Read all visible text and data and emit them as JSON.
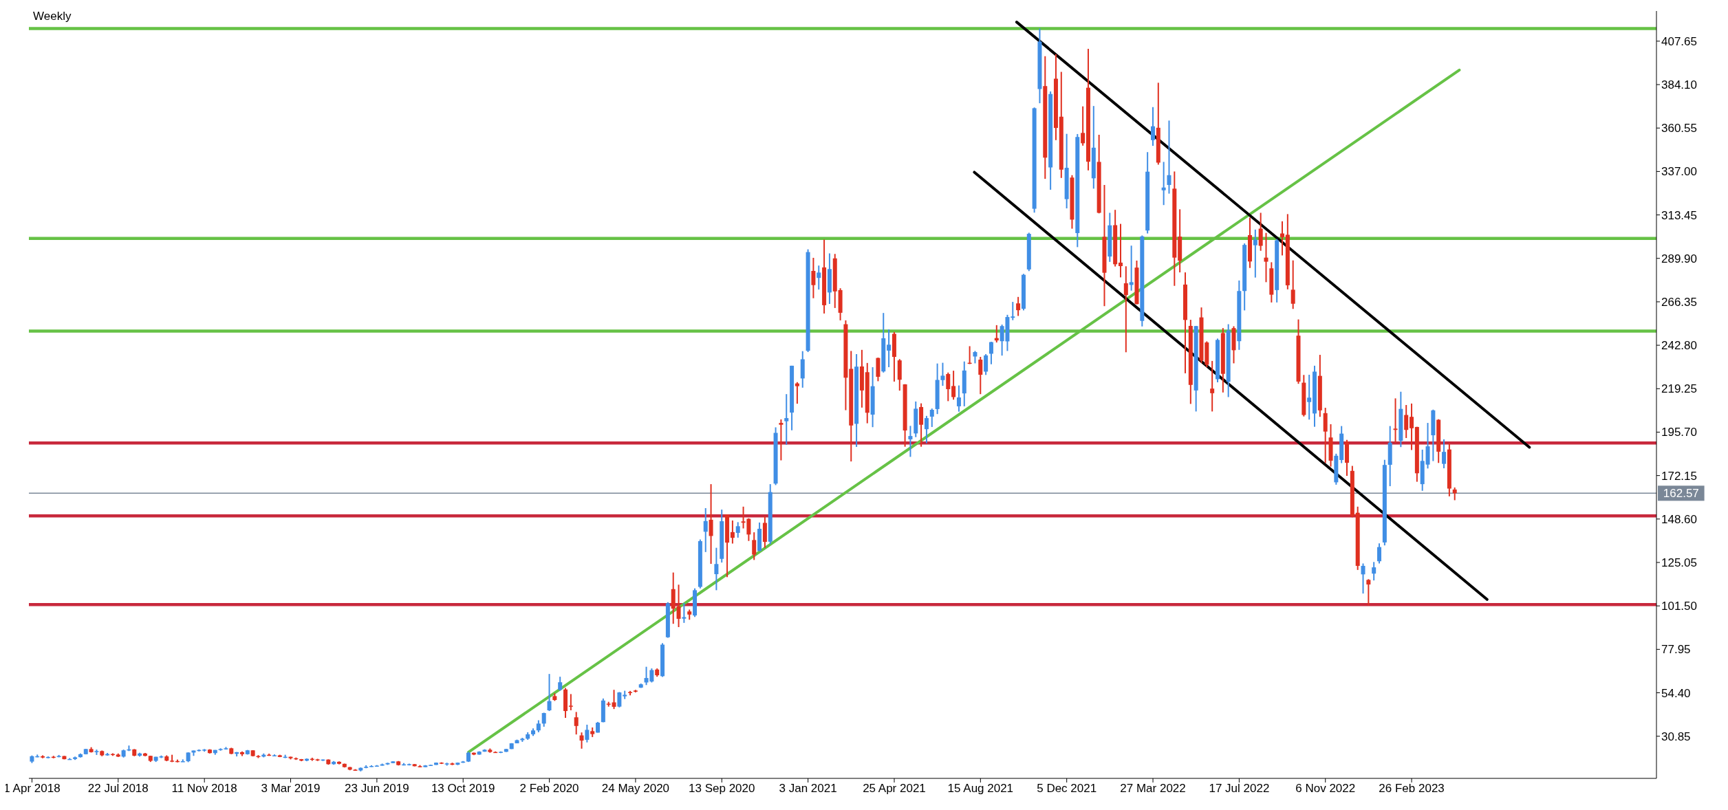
{
  "chart_data": {
    "type": "candlestick",
    "title": "Weekly",
    "x": [
      "2018-04-01",
      "2018-04-08",
      "2018-04-15",
      "2018-04-22",
      "2018-04-29",
      "2018-05-06",
      "2018-05-13",
      "2018-05-20",
      "2018-05-27",
      "2018-06-03",
      "2018-06-10",
      "2018-06-17",
      "2018-06-24",
      "2018-07-01",
      "2018-07-08",
      "2018-07-15",
      "2018-07-22",
      "2018-07-29",
      "2018-08-05",
      "2018-08-12",
      "2018-08-19",
      "2018-08-26",
      "2018-09-02",
      "2018-09-09",
      "2018-09-16",
      "2018-09-23",
      "2018-09-30",
      "2018-10-07",
      "2018-10-14",
      "2018-10-21",
      "2018-10-28",
      "2018-11-04",
      "2018-11-11",
      "2018-11-18",
      "2018-11-25",
      "2018-12-02",
      "2018-12-09",
      "2018-12-16",
      "2018-12-23",
      "2018-12-30",
      "2019-01-06",
      "2019-01-13",
      "2019-01-20",
      "2019-01-27",
      "2019-02-03",
      "2019-02-10",
      "2019-02-17",
      "2019-02-24",
      "2019-03-03",
      "2019-03-10",
      "2019-03-17",
      "2019-03-24",
      "2019-03-31",
      "2019-04-07",
      "2019-04-14",
      "2019-04-21",
      "2019-04-28",
      "2019-05-05",
      "2019-05-12",
      "2019-05-19",
      "2019-05-26",
      "2019-06-02",
      "2019-06-09",
      "2019-06-16",
      "2019-06-23",
      "2019-06-30",
      "2019-07-07",
      "2019-07-14",
      "2019-07-21",
      "2019-07-28",
      "2019-08-04",
      "2019-08-11",
      "2019-08-18",
      "2019-08-25",
      "2019-09-01",
      "2019-09-08",
      "2019-09-15",
      "2019-09-22",
      "2019-09-29",
      "2019-10-06",
      "2019-10-13",
      "2019-10-20",
      "2019-10-27",
      "2019-11-03",
      "2019-11-10",
      "2019-11-17",
      "2019-11-24",
      "2019-12-01",
      "2019-12-08",
      "2019-12-15",
      "2019-12-22",
      "2019-12-29",
      "2020-01-05",
      "2020-01-12",
      "2020-01-19",
      "2020-01-26",
      "2020-02-02",
      "2020-02-09",
      "2020-02-16",
      "2020-02-23",
      "2020-03-01",
      "2020-03-08",
      "2020-03-15",
      "2020-03-22",
      "2020-03-29",
      "2020-04-05",
      "2020-04-12",
      "2020-04-19",
      "2020-04-26",
      "2020-05-03",
      "2020-05-10",
      "2020-05-17",
      "2020-05-24",
      "2020-05-31",
      "2020-06-07",
      "2020-06-14",
      "2020-06-21",
      "2020-06-28",
      "2020-07-05",
      "2020-07-12",
      "2020-07-19",
      "2020-07-26",
      "2020-08-02",
      "2020-08-09",
      "2020-08-16",
      "2020-08-23",
      "2020-08-30",
      "2020-09-06",
      "2020-09-13",
      "2020-09-20",
      "2020-09-27",
      "2020-10-04",
      "2020-10-11",
      "2020-10-18",
      "2020-10-25",
      "2020-11-01",
      "2020-11-08",
      "2020-11-15",
      "2020-11-22",
      "2020-11-29",
      "2020-12-06",
      "2020-12-13",
      "2020-12-20",
      "2020-12-27",
      "2021-01-03",
      "2021-01-10",
      "2021-01-17",
      "2021-01-24",
      "2021-01-31",
      "2021-02-07",
      "2021-02-14",
      "2021-02-21",
      "2021-02-28",
      "2021-03-07",
      "2021-03-14",
      "2021-03-21",
      "2021-03-28",
      "2021-04-04",
      "2021-04-11",
      "2021-04-18",
      "2021-04-25",
      "2021-05-02",
      "2021-05-09",
      "2021-05-16",
      "2021-05-23",
      "2021-05-30",
      "2021-06-06",
      "2021-06-13",
      "2021-06-20",
      "2021-06-27",
      "2021-07-04",
      "2021-07-11",
      "2021-07-18",
      "2021-07-25",
      "2021-08-01",
      "2021-08-08",
      "2021-08-15",
      "2021-08-22",
      "2021-08-29",
      "2021-09-05",
      "2021-09-12",
      "2021-09-19",
      "2021-09-26",
      "2021-10-03",
      "2021-10-10",
      "2021-10-17",
      "2021-10-24",
      "2021-10-31",
      "2021-11-07",
      "2021-11-14",
      "2021-11-21",
      "2021-11-28",
      "2021-12-05",
      "2021-12-12",
      "2021-12-19",
      "2021-12-26",
      "2022-01-02",
      "2022-01-09",
      "2022-01-16",
      "2022-01-23",
      "2022-01-30",
      "2022-02-06",
      "2022-02-13",
      "2022-02-20",
      "2022-02-27",
      "2022-03-06",
      "2022-03-13",
      "2022-03-20",
      "2022-03-27",
      "2022-04-03",
      "2022-04-10",
      "2022-04-17",
      "2022-04-24",
      "2022-05-01",
      "2022-05-08",
      "2022-05-15",
      "2022-05-22",
      "2022-05-29",
      "2022-06-05",
      "2022-06-12",
      "2022-06-19",
      "2022-06-26",
      "2022-07-03",
      "2022-07-10",
      "2022-07-17",
      "2022-07-24",
      "2022-07-31",
      "2022-08-07",
      "2022-08-14",
      "2022-08-21",
      "2022-08-28",
      "2022-09-04",
      "2022-09-11",
      "2022-09-18",
      "2022-09-25",
      "2022-10-02",
      "2022-10-09",
      "2022-10-16",
      "2022-10-23",
      "2022-10-30",
      "2022-11-06",
      "2022-11-13",
      "2022-11-20",
      "2022-11-27",
      "2022-12-04",
      "2022-12-11",
      "2022-12-18",
      "2022-12-25",
      "2023-01-01",
      "2023-01-08",
      "2023-01-15",
      "2023-01-22",
      "2023-01-29",
      "2023-02-05",
      "2023-02-12",
      "2023-02-19",
      "2023-02-26",
      "2023-03-05",
      "2023-03-12",
      "2023-03-19",
      "2023-03-26",
      "2023-04-02",
      "2023-04-09",
      "2023-04-16",
      "2023-04-23"
    ],
    "ohlc": [
      [
        17.1,
        20.4,
        16.3,
        20.0
      ],
      [
        19.9,
        20.9,
        19.4,
        20.0
      ],
      [
        20.0,
        20.5,
        18.9,
        19.3
      ],
      [
        19.3,
        19.9,
        18.9,
        19.6
      ],
      [
        19.7,
        20.2,
        18.9,
        19.6
      ],
      [
        19.6,
        20.7,
        19.4,
        20.1
      ],
      [
        20.1,
        20.2,
        18.3,
        18.4
      ],
      [
        18.4,
        19.0,
        18.1,
        18.5
      ],
      [
        18.5,
        19.8,
        18.0,
        19.4
      ],
      [
        19.5,
        21.5,
        19.3,
        21.1
      ],
      [
        21.1,
        24.0,
        21.0,
        23.9
      ],
      [
        23.9,
        24.9,
        22.0,
        22.2
      ],
      [
        22.2,
        23.6,
        20.7,
        22.8
      ],
      [
        22.8,
        23.1,
        20.0,
        20.5
      ],
      [
        20.5,
        21.8,
        20.3,
        21.2
      ],
      [
        21.2,
        21.6,
        20.2,
        20.9
      ],
      [
        20.9,
        21.5,
        19.6,
        19.8
      ],
      [
        19.8,
        23.6,
        19.3,
        23.2
      ],
      [
        23.2,
        25.8,
        22.8,
        23.7
      ],
      [
        23.7,
        23.9,
        20.0,
        20.3
      ],
      [
        20.3,
        21.9,
        19.8,
        21.5
      ],
      [
        21.5,
        21.8,
        20.0,
        20.2
      ],
      [
        20.2,
        20.3,
        16.9,
        17.5
      ],
      [
        17.5,
        19.7,
        16.9,
        19.7
      ],
      [
        19.7,
        20.4,
        19.0,
        19.9
      ],
      [
        19.9,
        20.5,
        17.3,
        17.6
      ],
      [
        17.6,
        20.8,
        16.8,
        17.4
      ],
      [
        17.4,
        18.2,
        16.7,
        17.2
      ],
      [
        17.2,
        18.3,
        16.9,
        17.3
      ],
      [
        17.3,
        22.1,
        16.8,
        22.0
      ],
      [
        22.0,
        23.1,
        20.2,
        23.1
      ],
      [
        23.1,
        23.7,
        22.6,
        23.4
      ],
      [
        23.4,
        23.9,
        22.5,
        23.6
      ],
      [
        23.6,
        23.8,
        21.5,
        21.7
      ],
      [
        21.7,
        23.4,
        20.8,
        23.4
      ],
      [
        23.4,
        24.3,
        23.0,
        23.9
      ],
      [
        23.9,
        25.0,
        23.6,
        24.3
      ],
      [
        24.3,
        24.6,
        21.1,
        21.3
      ],
      [
        21.3,
        22.3,
        19.9,
        22.2
      ],
      [
        22.2,
        22.6,
        20.1,
        21.1
      ],
      [
        21.1,
        23.4,
        20.9,
        23.2
      ],
      [
        23.2,
        23.3,
        19.9,
        20.1
      ],
      [
        20.1,
        20.6,
        19.0,
        19.8
      ],
      [
        19.8,
        21.5,
        19.4,
        20.8
      ],
      [
        20.8,
        21.4,
        20.2,
        20.3
      ],
      [
        20.3,
        21.0,
        20.1,
        20.5
      ],
      [
        20.5,
        20.8,
        19.5,
        19.6
      ],
      [
        19.6,
        20.8,
        19.0,
        19.7
      ],
      [
        19.7,
        19.8,
        18.3,
        18.9
      ],
      [
        18.9,
        19.3,
        18.0,
        18.4
      ],
      [
        18.4,
        18.5,
        17.3,
        17.6
      ],
      [
        17.6,
        18.8,
        17.3,
        18.6
      ],
      [
        18.6,
        19.2,
        17.5,
        18.3
      ],
      [
        18.3,
        18.6,
        17.4,
        17.8
      ],
      [
        17.8,
        18.3,
        17.4,
        18.2
      ],
      [
        18.2,
        18.3,
        15.4,
        15.7
      ],
      [
        15.7,
        17.4,
        15.4,
        17.0
      ],
      [
        17.0,
        17.2,
        15.6,
        15.9
      ],
      [
        15.9,
        16.0,
        13.9,
        14.1
      ],
      [
        14.1,
        14.2,
        12.4,
        12.7
      ],
      [
        12.7,
        13.0,
        12.1,
        12.3
      ],
      [
        12.3,
        13.9,
        11.8,
        13.7
      ],
      [
        13.7,
        15.1,
        13.5,
        14.3
      ],
      [
        14.3,
        15.1,
        14.2,
        14.7
      ],
      [
        14.7,
        15.2,
        14.3,
        14.9
      ],
      [
        14.9,
        16.0,
        14.9,
        15.6
      ],
      [
        15.6,
        16.5,
        15.3,
        16.3
      ],
      [
        16.3,
        17.3,
        16.2,
        17.2
      ],
      [
        17.2,
        17.4,
        15.0,
        15.2
      ],
      [
        15.2,
        16.3,
        15.0,
        15.6
      ],
      [
        15.6,
        16.0,
        15.0,
        15.7
      ],
      [
        15.7,
        15.8,
        14.5,
        14.6
      ],
      [
        14.6,
        15.2,
        14.0,
        14.1
      ],
      [
        14.1,
        15.2,
        14.1,
        15.0
      ],
      [
        15.0,
        15.4,
        14.8,
        15.3
      ],
      [
        15.3,
        16.6,
        15.3,
        16.5
      ],
      [
        16.5,
        16.7,
        15.8,
        16.0
      ],
      [
        16.0,
        16.5,
        14.9,
        16.1
      ],
      [
        16.1,
        16.5,
        15.2,
        15.4
      ],
      [
        15.4,
        16.6,
        15.2,
        16.5
      ],
      [
        16.5,
        17.4,
        16.4,
        17.1
      ],
      [
        17.1,
        22.4,
        16.9,
        21.9
      ],
      [
        21.9,
        22.0,
        20.6,
        20.9
      ],
      [
        20.9,
        22.7,
        20.8,
        22.5
      ],
      [
        22.5,
        23.8,
        22.4,
        23.5
      ],
      [
        23.5,
        24.2,
        21.9,
        22.3
      ],
      [
        22.3,
        22.6,
        21.8,
        21.9
      ],
      [
        21.9,
        22.6,
        21.7,
        22.4
      ],
      [
        22.4,
        24.0,
        22.3,
        23.9
      ],
      [
        23.9,
        27.1,
        23.9,
        27.0
      ],
      [
        27.0,
        29.0,
        27.0,
        28.7
      ],
      [
        28.7,
        30.0,
        27.8,
        29.5
      ],
      [
        29.5,
        33.0,
        28.9,
        31.9
      ],
      [
        31.9,
        35.1,
        31.0,
        34.0
      ],
      [
        34.0,
        39.5,
        33.0,
        37.7
      ],
      [
        37.7,
        43.6,
        36.0,
        43.4
      ],
      [
        44.9,
        64.6,
        44.5,
        49.9
      ],
      [
        52.6,
        54.1,
        50.0,
        50.5
      ],
      [
        56.0,
        63.1,
        55.5,
        60.1
      ],
      [
        56.2,
        57.0,
        40.8,
        44.5
      ],
      [
        47.4,
        53.7,
        44.9,
        46.9
      ],
      [
        41.1,
        44.0,
        31.8,
        36.4
      ],
      [
        31.3,
        32.9,
        24.1,
        28.5
      ],
      [
        28.9,
        37.1,
        27.5,
        34.3
      ],
      [
        33.6,
        35.6,
        30.4,
        32.0
      ],
      [
        32.8,
        38.6,
        32.8,
        38.2
      ],
      [
        38.5,
        51.3,
        38.4,
        50.2
      ],
      [
        48.5,
        49.5,
        46.9,
        48.3
      ],
      [
        49.2,
        56.0,
        45.6,
        46.8
      ],
      [
        46.9,
        54.8,
        46.5,
        54.6
      ],
      [
        52.5,
        55.5,
        51.0,
        53.3
      ],
      [
        54.8,
        55.4,
        53.0,
        54.4
      ],
      [
        55.6,
        56.0,
        54.6,
        55.0
      ],
      [
        57.2,
        59.4,
        57.0,
        59.0
      ],
      [
        60.0,
        68.5,
        58.6,
        62.4
      ],
      [
        60.5,
        67.6,
        60.0,
        66.7
      ],
      [
        67.0,
        67.6,
        63.1,
        63.9
      ],
      [
        63.4,
        81.3,
        63.0,
        80.5
      ],
      [
        84.5,
        103.5,
        84.2,
        102.9
      ],
      [
        110.6,
        119.6,
        91.8,
        100.0
      ],
      [
        101.3,
        113.0,
        90.0,
        94.5
      ],
      [
        94.6,
        103.1,
        92.3,
        95.4
      ],
      [
        98.5,
        99.5,
        94.0,
        96.8
      ],
      [
        96.3,
        111.0,
        95.5,
        110.0
      ],
      [
        111.8,
        137.5,
        111.0,
        136.6
      ],
      [
        141.7,
        154.5,
        130.7,
        147.5
      ],
      [
        148.2,
        167.5,
        124.3,
        139.4
      ],
      [
        118.7,
        133.0,
        110.0,
        124.2
      ],
      [
        127.0,
        153.7,
        125.0,
        147.4
      ],
      [
        151.0,
        151.1,
        117.1,
        135.8
      ],
      [
        141.5,
        147.8,
        135.3,
        138.4
      ],
      [
        141.1,
        146.9,
        138.5,
        144.7
      ],
      [
        147.3,
        155.3,
        143.5,
        146.6
      ],
      [
        148.7,
        149.0,
        136.7,
        140.2
      ],
      [
        137.2,
        141.4,
        126.4,
        129.3
      ],
      [
        131.3,
        146.7,
        131.2,
        143.3
      ],
      [
        146.5,
        150.1,
        133.0,
        136.2
      ],
      [
        136.3,
        167.5,
        135.0,
        163.2
      ],
      [
        167.8,
        198.3,
        167.0,
        195.3
      ],
      [
        200.7,
        202.6,
        180.4,
        199.7
      ],
      [
        201.6,
        216.3,
        188.8,
        203.3
      ],
      [
        206.3,
        231.7,
        196.7,
        231.7
      ],
      [
        222.1,
        222.8,
        211.1,
        220.6
      ],
      [
        224.8,
        239.6,
        219.8,
        235.2
      ],
      [
        239.8,
        294.8,
        239.1,
        293.3
      ],
      [
        283.1,
        290.2,
        268.3,
        275.4
      ],
      [
        279.3,
        286.0,
        273.0,
        282.2
      ],
      [
        285.0,
        300.1,
        260.0,
        264.5
      ],
      [
        271.4,
        292.6,
        265.2,
        284.1
      ],
      [
        289.9,
        292.3,
        263.0,
        272.0
      ],
      [
        272.7,
        273.7,
        256.3,
        260.4
      ],
      [
        254.2,
        256.3,
        207.6,
        225.2
      ],
      [
        230.0,
        239.7,
        179.8,
        199.3
      ],
      [
        200.2,
        238.0,
        187.7,
        231.2
      ],
      [
        231.3,
        240.3,
        209.0,
        218.3
      ],
      [
        228.2,
        233.2,
        200.5,
        206.2
      ],
      [
        205.2,
        230.9,
        198.4,
        220.6
      ],
      [
        235.9,
        236.1,
        223.3,
        225.7
      ],
      [
        228.6,
        260.3,
        228.0,
        246.6
      ],
      [
        239.9,
        251.4,
        230.9,
        243.1
      ],
      [
        249.0,
        250.0,
        223.1,
        236.5
      ],
      [
        234.6,
        235.3,
        218.2,
        224.1
      ],
      [
        221.6,
        221.7,
        187.8,
        196.6
      ],
      [
        191.8,
        199.1,
        182.3,
        193.6
      ],
      [
        195.0,
        212.3,
        193.0,
        208.4
      ],
      [
        209.3,
        211.3,
        187.8,
        199.7
      ],
      [
        197.3,
        204.5,
        189.7,
        203.3
      ],
      [
        204.1,
        208.5,
        198.5,
        207.8
      ],
      [
        208.2,
        232.9,
        205.5,
        224.0
      ],
      [
        223.9,
        233.3,
        220.8,
        226.3
      ],
      [
        227.2,
        228.0,
        212.5,
        219.0
      ],
      [
        220.7,
        229.0,
        213.3,
        214.7
      ],
      [
        209.7,
        221.0,
        206.8,
        214.5
      ],
      [
        216.7,
        234.0,
        209.7,
        229.1
      ],
      [
        233.3,
        242.3,
        232.6,
        233.0
      ],
      [
        236.7,
        239.7,
        233.0,
        239.1
      ],
      [
        235.0,
        236.5,
        216.3,
        226.8
      ],
      [
        228.5,
        238.0,
        226.7,
        237.3
      ],
      [
        238.2,
        244.7,
        232.5,
        244.5
      ],
      [
        246.7,
        253.7,
        244.3,
        245.4
      ],
      [
        245.0,
        254.0,
        237.2,
        253.2
      ],
      [
        244.9,
        259.3,
        239.7,
        258.1
      ],
      [
        257.7,
        266.3,
        256.4,
        258.4
      ],
      [
        265.5,
        269.0,
        258.7,
        261.8
      ],
      [
        262.6,
        281.5,
        261.7,
        281.0
      ],
      [
        283.9,
        303.8,
        283.0,
        303.2
      ],
      [
        316.8,
        371.7,
        314.7,
        371.3
      ],
      [
        381.7,
        414.5,
        374.0,
        407.4
      ],
      [
        383.3,
        399.5,
        333.0,
        344.5
      ],
      [
        339.2,
        380.4,
        327.1,
        379.0
      ],
      [
        387.3,
        400.6,
        354.0,
        360.6
      ],
      [
        366.7,
        391.0,
        333.5,
        338.0
      ],
      [
        322.0,
        357.4,
        317.0,
        339.0
      ],
      [
        333.7,
        335.0,
        306.0,
        310.9
      ],
      [
        303.6,
        357.3,
        296.0,
        355.7
      ],
      [
        357.9,
        372.3,
        351.0,
        352.3
      ],
      [
        382.4,
        403.5,
        337.6,
        342.3
      ],
      [
        333.3,
        372.5,
        327.7,
        349.9
      ],
      [
        342.2,
        356.9,
        314.3,
        314.6
      ],
      [
        301.6,
        329.7,
        264.0,
        282.1
      ],
      [
        290.9,
        314.6,
        288.0,
        307.8
      ],
      [
        307.9,
        316.2,
        285.5,
        286.7
      ],
      [
        287.6,
        308.6,
        279.6,
        285.7
      ],
      [
        276.4,
        285.6,
        239.0,
        270.0
      ],
      [
        275.5,
        296.8,
        272.4,
        277.0
      ],
      [
        284.9,
        288.7,
        265.0,
        265.1
      ],
      [
        256.0,
        302.3,
        253.0,
        301.8
      ],
      [
        305.0,
        347.5,
        303.4,
        336.9
      ],
      [
        354.0,
        371.9,
        350.9,
        361.5
      ],
      [
        360.7,
        385.1,
        340.7,
        341.8
      ],
      [
        326.8,
        342.2,
        318.8,
        328.3
      ],
      [
        329.7,
        364.6,
        325.0,
        335.0
      ],
      [
        327.7,
        337.0,
        275.0,
        290.3
      ],
      [
        301.7,
        316.5,
        282.3,
        288.6
      ],
      [
        275.7,
        282.3,
        227.6,
        256.5
      ],
      [
        253.3,
        256.6,
        211.0,
        221.3
      ],
      [
        218.3,
        253.3,
        206.9,
        253.2
      ],
      [
        257.9,
        263.3,
        233.2,
        234.5
      ],
      [
        244.3,
        244.9,
        230.9,
        232.2
      ],
      [
        219.3,
        234.3,
        206.9,
        216.8
      ],
      [
        224.4,
        246.4,
        222.7,
        245.7
      ],
      [
        249.4,
        252.1,
        217.2,
        227.3
      ],
      [
        223.0,
        254.2,
        214.7,
        250.8
      ],
      [
        252.1,
        253.1,
        233.0,
        240.1
      ],
      [
        245.0,
        277.9,
        240.3,
        272.2
      ],
      [
        272.2,
        298.0,
        261.7,
        297.2
      ],
      [
        302.5,
        312.0,
        284.7,
        288.2
      ],
      [
        297.0,
        305.5,
        279.5,
        300.0
      ],
      [
        306.0,
        314.6,
        294.0,
        296.7
      ],
      [
        290.3,
        303.7,
        277.0,
        288.1
      ],
      [
        284.5,
        287.8,
        266.0,
        270.2
      ],
      [
        272.7,
        300.4,
        266.0,
        299.7
      ],
      [
        303.4,
        310.0,
        291.5,
        301.4
      ],
      [
        302.7,
        313.9,
        273.1,
        275.3
      ],
      [
        272.9,
        288.8,
        262.5,
        265.3
      ],
      [
        248.0,
        256.8,
        221.9,
        223.1
      ],
      [
        222.5,
        226.7,
        204.2,
        205.0
      ],
      [
        212.0,
        226.8,
        202.5,
        214.4
      ],
      [
        205.8,
        231.7,
        198.6,
        228.5
      ],
      [
        226.2,
        237.6,
        204.0,
        207.5
      ],
      [
        206.0,
        208.9,
        179.0,
        196.0
      ],
      [
        192.8,
        200.0,
        177.0,
        180.2
      ],
      [
        168.5,
        184.0,
        167.2,
        182.9
      ],
      [
        180.6,
        199.0,
        178.9,
        194.9
      ],
      [
        190.6,
        191.5,
        172.0,
        179.1
      ],
      [
        174.7,
        177.4,
        149.5,
        150.2
      ],
      [
        152.0,
        155.3,
        121.0,
        123.2
      ],
      [
        118.6,
        124.5,
        108.2,
        123.2
      ],
      [
        115.6,
        116.0,
        101.8,
        113.1
      ],
      [
        119.0,
        125.3,
        115.3,
        122.4
      ],
      [
        125.7,
        135.4,
        124.5,
        133.4
      ],
      [
        135.9,
        180.7,
        134.3,
        177.9
      ],
      [
        178.0,
        199.0,
        166.4,
        190.0
      ],
      [
        197.6,
        214.0,
        190.0,
        196.9
      ],
      [
        191.0,
        217.6,
        187.6,
        208.3
      ],
      [
        205.0,
        210.4,
        192.5,
        196.9
      ],
      [
        204.0,
        211.2,
        186.0,
        197.8
      ],
      [
        198.5,
        198.6,
        168.8,
        173.4
      ],
      [
        167.5,
        186.2,
        163.9,
        180.1
      ],
      [
        178.1,
        200.7,
        176.0,
        188.0
      ],
      [
        194.0,
        207.9,
        180.0,
        207.5
      ],
      [
        202.4,
        202.7,
        179.0,
        185.1
      ],
      [
        178.5,
        191.8,
        176.1,
        185.0
      ],
      [
        186.3,
        189.7,
        160.9,
        165.1
      ],
      [
        164.6,
        165.7,
        158.8,
        162.57
      ]
    ],
    "colors": [
      "#408ee5",
      "#408ee5",
      "#e03020",
      "#408ee5",
      "#e03020",
      "#408ee5",
      "#e03020",
      "#408ee5",
      "#408ee5",
      "#408ee5",
      "#408ee5",
      "#e03020",
      "#408ee5",
      "#e03020",
      "#408ee5",
      "#e03020",
      "#e03020",
      "#408ee5",
      "#408ee5",
      "#e03020",
      "#408ee5",
      "#e03020",
      "#e03020",
      "#408ee5",
      "#408ee5",
      "#e03020",
      "#e03020",
      "#e03020",
      "#408ee5",
      "#408ee5",
      "#408ee5",
      "#408ee5",
      "#408ee5",
      "#e03020",
      "#408ee5",
      "#408ee5",
      "#408ee5",
      "#e03020",
      "#408ee5",
      "#e03020",
      "#408ee5",
      "#e03020",
      "#e03020",
      "#408ee5",
      "#e03020",
      "#408ee5",
      "#e03020",
      "#408ee5",
      "#e03020",
      "#e03020",
      "#e03020",
      "#408ee5",
      "#e03020",
      "#e03020",
      "#408ee5",
      "#e03020",
      "#408ee5",
      "#e03020",
      "#e03020",
      "#e03020",
      "#e03020",
      "#408ee5",
      "#408ee5",
      "#408ee5",
      "#408ee5",
      "#408ee5",
      "#408ee5",
      "#408ee5",
      "#e03020",
      "#408ee5",
      "#408ee5",
      "#e03020",
      "#e03020",
      "#408ee5",
      "#408ee5",
      "#408ee5",
      "#e03020",
      "#408ee5",
      "#e03020",
      "#408ee5",
      "#408ee5",
      "#408ee5",
      "#e03020",
      "#408ee5",
      "#408ee5",
      "#e03020",
      "#e03020",
      "#408ee5",
      "#408ee5",
      "#408ee5",
      "#408ee5",
      "#408ee5",
      "#408ee5",
      "#408ee5",
      "#408ee5",
      "#408ee5",
      "#408ee5",
      "#e03020",
      "#408ee5",
      "#e03020",
      "#e03020",
      "#e03020",
      "#e03020",
      "#408ee5",
      "#e03020",
      "#408ee5",
      "#408ee5",
      "#e03020",
      "#e03020",
      "#408ee5",
      "#408ee5",
      "#e03020",
      "#e03020",
      "#408ee5",
      "#408ee5",
      "#408ee5",
      "#e03020",
      "#408ee5",
      "#408ee5",
      "#e03020",
      "#e03020",
      "#408ee5",
      "#e03020",
      "#408ee5",
      "#408ee5",
      "#408ee5",
      "#e03020",
      "#408ee5",
      "#408ee5",
      "#e03020",
      "#e03020",
      "#408ee5",
      "#e03020",
      "#e03020",
      "#e03020",
      "#408ee5",
      "#e03020",
      "#408ee5",
      "#408ee5",
      "#e03020",
      "#408ee5",
      "#408ee5",
      "#e03020",
      "#408ee5",
      "#408ee5",
      "#e03020",
      "#408ee5",
      "#e03020",
      "#408ee5",
      "#e03020",
      "#e03020",
      "#e03020",
      "#e03020",
      "#408ee5",
      "#e03020",
      "#e03020",
      "#408ee5",
      "#e03020",
      "#408ee5",
      "#408ee5",
      "#e03020",
      "#e03020",
      "#e03020",
      "#408ee5",
      "#408ee5",
      "#e03020",
      "#408ee5",
      "#408ee5",
      "#408ee5",
      "#408ee5",
      "#e03020",
      "#e03020",
      "#408ee5",
      "#408ee5",
      "#e03020",
      "#408ee5",
      "#e03020",
      "#408ee5",
      "#408ee5",
      "#e03020",
      "#408ee5",
      "#408ee5",
      "#408ee5",
      "#e03020",
      "#408ee5",
      "#408ee5",
      "#408ee5",
      "#408ee5",
      "#e03020",
      "#408ee5",
      "#e03020",
      "#e03020",
      "#408ee5",
      "#e03020",
      "#408ee5",
      "#e03020",
      "#e03020",
      "#408ee5",
      "#e03020",
      "#e03020",
      "#408ee5",
      "#e03020",
      "#e03020",
      "#e03020",
      "#408ee5",
      "#e03020",
      "#408ee5",
      "#408ee5",
      "#408ee5",
      "#e03020",
      "#408ee5",
      "#408ee5",
      "#e03020",
      "#e03020",
      "#e03020",
      "#e03020",
      "#408ee5",
      "#e03020",
      "#e03020",
      "#e03020",
      "#408ee5",
      "#e03020",
      "#408ee5",
      "#e03020",
      "#408ee5",
      "#408ee5",
      "#e03020",
      "#408ee5",
      "#e03020",
      "#e03020",
      "#e03020",
      "#408ee5",
      "#e03020",
      "#e03020",
      "#e03020",
      "#e03020",
      "#e03020",
      "#408ee5",
      "#408ee5",
      "#e03020",
      "#e03020",
      "#e03020",
      "#408ee5",
      "#408ee5",
      "#e03020",
      "#e03020",
      "#e03020",
      "#408ee5",
      "#e03020",
      "#408ee5",
      "#408ee5",
      "#408ee5",
      "#408ee5",
      "#e03020",
      "#408ee5",
      "#e03020",
      "#e03020",
      "#e03020",
      "#408ee5",
      "#408ee5",
      "#408ee5",
      "#e03020",
      "#408ee5",
      "#e03020",
      "#e03020"
    ],
    "series": [
      {
        "type": "line",
        "x": [
          "2019-10-20",
          "2023-04-29"
        ],
        "values": [
          22.2,
          392.0
        ],
        "color": "#66c246"
      },
      {
        "type": "line",
        "x": [
          "2021-10-01",
          "2023-07-29"
        ],
        "values": [
          418.0,
          187.5
        ],
        "color": "#000000"
      },
      {
        "type": "line",
        "x": [
          "2021-08-07",
          "2023-06-04"
        ],
        "values": [
          336.6,
          105.0
        ],
        "color": "#000000"
      }
    ],
    "xlim": [
      "2018-03-28",
      "2024-01-10"
    ],
    "xticks": [
      {
        "value": "2018-04-01",
        "label": "1 Apr 2018"
      },
      {
        "value": "2018-07-22",
        "label": "22 Jul 2018"
      },
      {
        "value": "2018-11-11",
        "label": "11 Nov 2018"
      },
      {
        "value": "2019-03-03",
        "label": "3 Mar 2019"
      },
      {
        "value": "2019-06-23",
        "label": "23 Jun 2019"
      },
      {
        "value": "2019-10-13",
        "label": "13 Oct 2019"
      },
      {
        "value": "2020-02-02",
        "label": "2 Feb 2020"
      },
      {
        "value": "2020-05-24",
        "label": "24 May 2020"
      },
      {
        "value": "2020-09-13",
        "label": "13 Sep 2020"
      },
      {
        "value": "2021-01-03",
        "label": "3 Jan 2021"
      },
      {
        "value": "2021-04-25",
        "label": "25 Apr 2021"
      },
      {
        "value": "2021-08-15",
        "label": "15 Aug 2021"
      },
      {
        "value": "2021-12-05",
        "label": "5 Dec 2021"
      },
      {
        "value": "2022-03-27",
        "label": "27 Mar 2022"
      },
      {
        "value": "2022-07-17",
        "label": "17 Jul 2022"
      },
      {
        "value": "2022-11-06",
        "label": "6 Nov 2022"
      },
      {
        "value": "2023-02-26",
        "label": "26 Feb 2023"
      }
    ],
    "ylim": [
      8,
      424
    ],
    "yticks": [
      30.85,
      {
        "value": 54.4,
        "label": "54.40"
      },
      77.95,
      {
        "value": 101.5,
        "label": "101.50"
      },
      125.05,
      {
        "value": 148.6,
        "label": "148.60"
      },
      172.15,
      {
        "value": 195.7,
        "label": "195.70"
      },
      219.25,
      {
        "value": 242.8,
        "label": "242.80"
      },
      266.35,
      {
        "value": 289.9,
        "label": "289.90"
      },
      313.45,
      {
        "value": 337,
        "label": "337.00"
      },
      360.55,
      {
        "value": 384.1,
        "label": "384.10"
      },
      407.65
    ],
    "ref_lines": [
      {
        "axis": "y",
        "value": 414.5,
        "color": "#66c246"
      },
      {
        "axis": "y",
        "value": 300.7,
        "color": "#66c246"
      },
      {
        "axis": "y",
        "value": 250.5,
        "color": "#66c246"
      },
      {
        "axis": "y",
        "value": 189.8,
        "color": "#c8283c"
      },
      {
        "axis": "y",
        "value": 150.3,
        "color": "#c8283c"
      },
      {
        "axis": "y",
        "value": 102.2,
        "color": "#c8283c"
      },
      {
        "axis": "y",
        "value": 162.57,
        "label": "162.57",
        "color": "#7a8797"
      }
    ]
  }
}
